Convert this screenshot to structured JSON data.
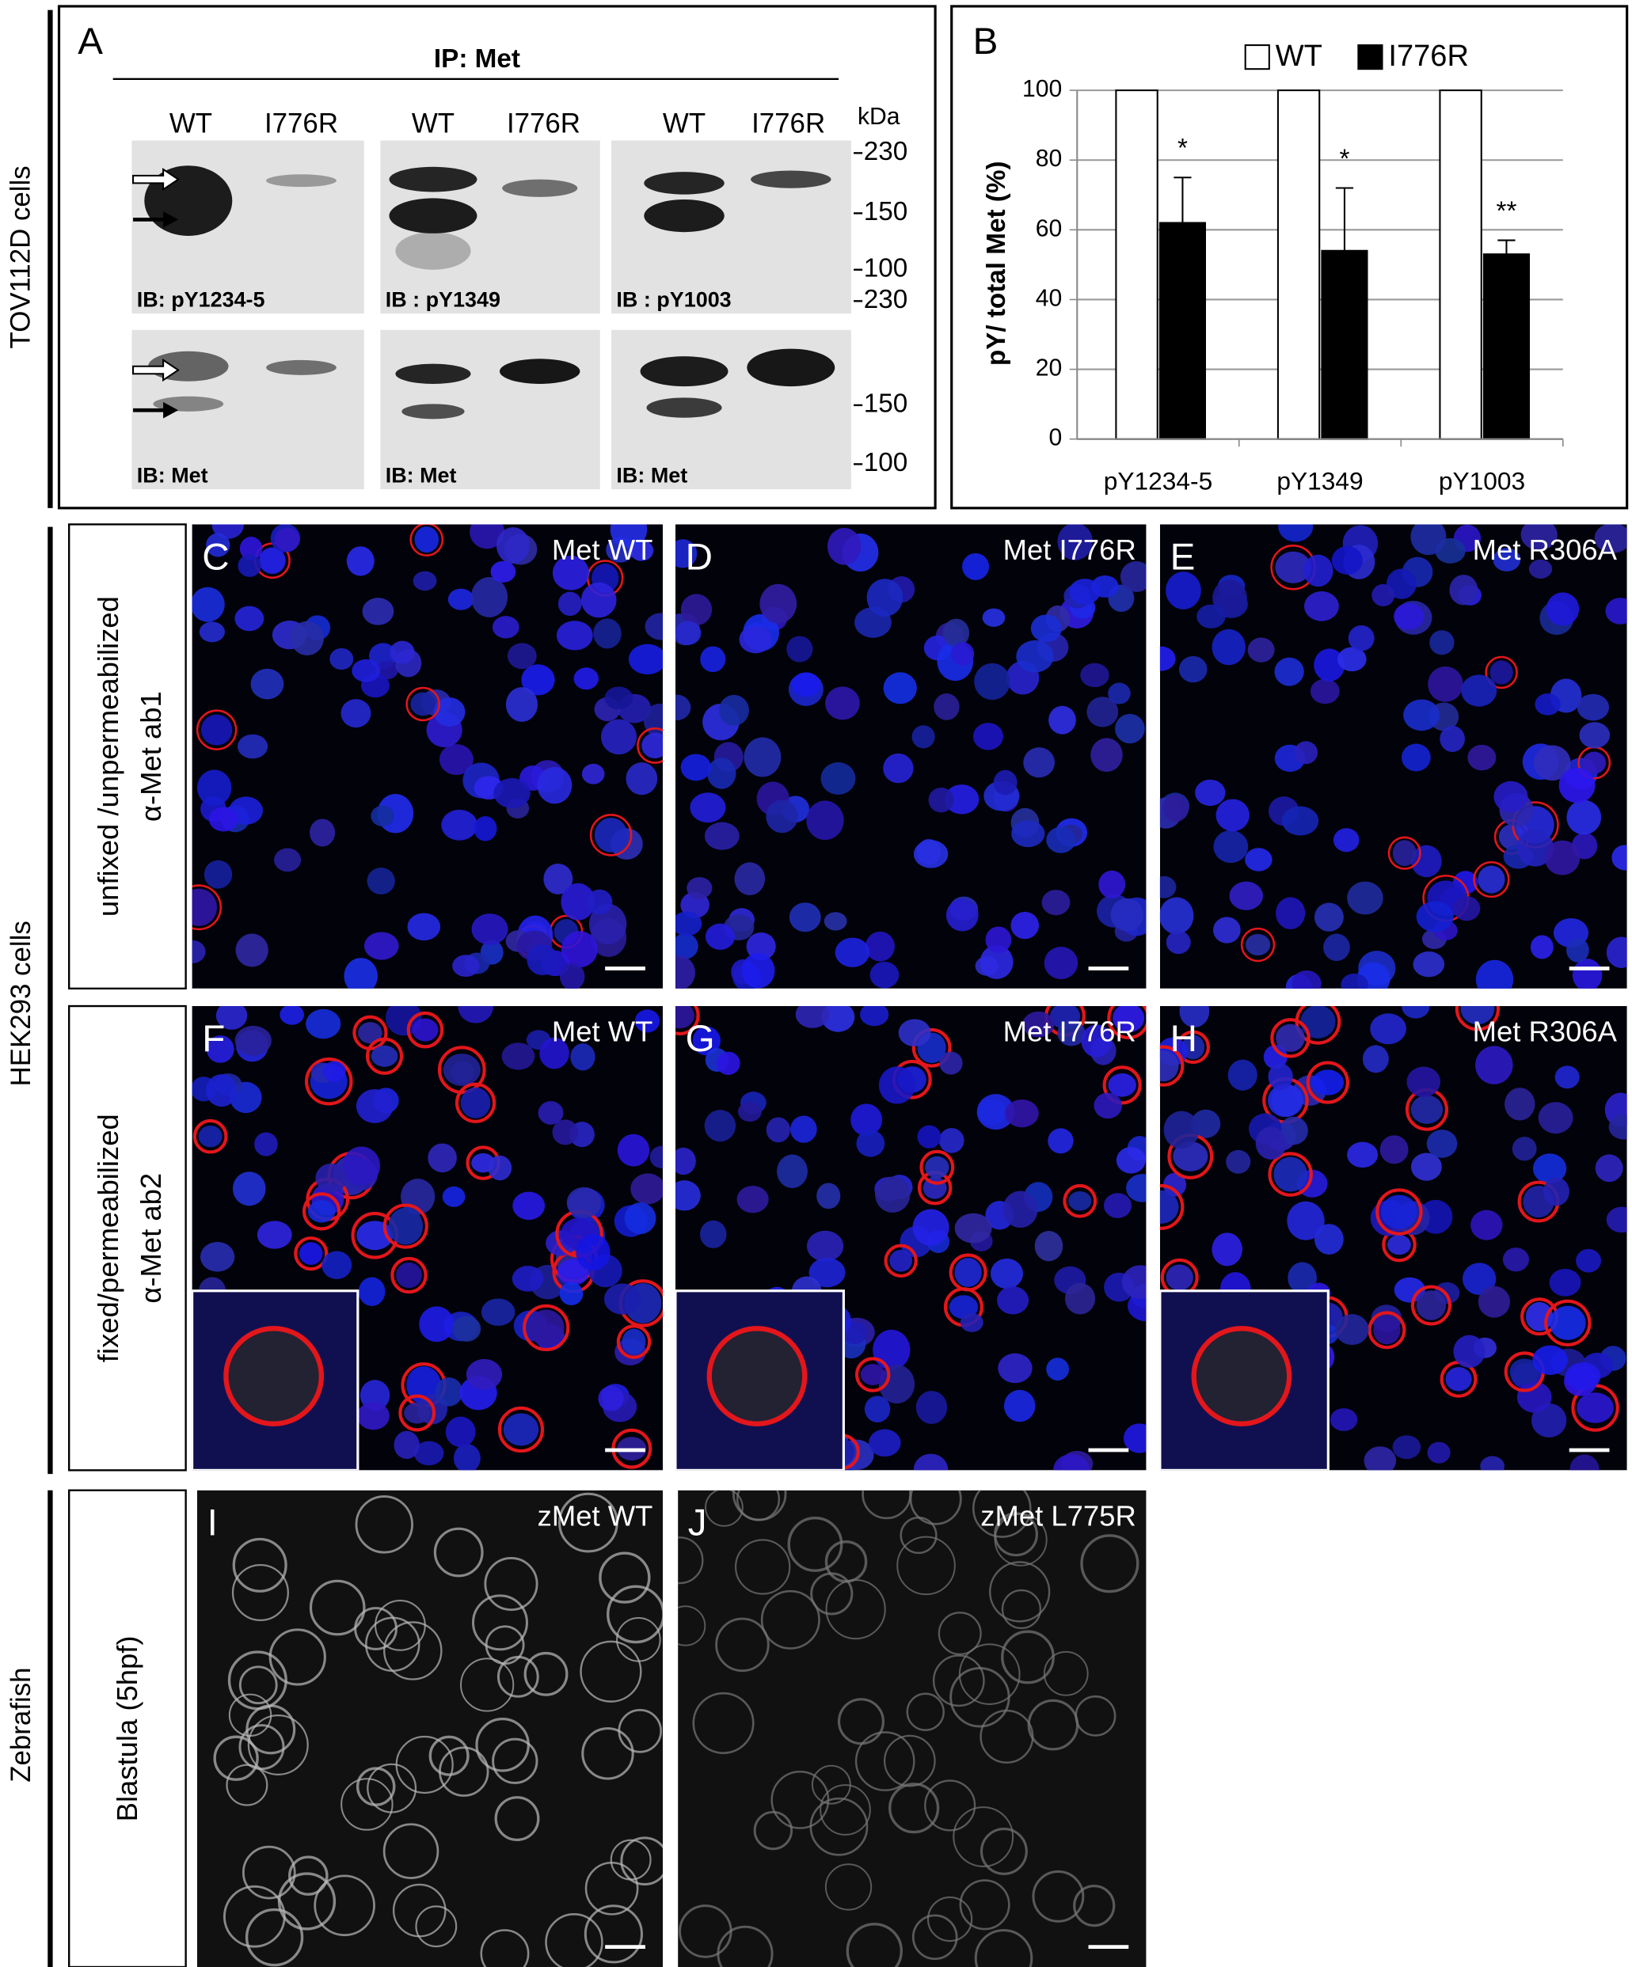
{
  "side_labels": {
    "tov": "TOV112D cells",
    "hek": "HEK293 cells",
    "zebrafish": "Zebrafish"
  },
  "panel_a": {
    "letter": "A",
    "ip": "IP: Met",
    "kda": "kDa",
    "lanes": [
      "WT",
      "I776R",
      "WT",
      "I776R",
      "WT",
      "I776R"
    ],
    "top_markers": [
      230,
      150,
      100
    ],
    "bottom_markers": [
      230,
      150,
      100
    ],
    "top_ib": [
      "IB: pY1234-5",
      "IB : pY1349",
      "IB : pY1003"
    ],
    "bottom_ib": [
      "IB: Met",
      "IB: Met",
      "IB: Met"
    ]
  },
  "chart_data": {
    "type": "bar",
    "panel_letter": "B",
    "ylabel": "pY/ total Met (%)",
    "categories": [
      "pY1234-5",
      "pY1349",
      "pY1003"
    ],
    "series": [
      {
        "name": "WT",
        "color": "#ffffff",
        "values": [
          100,
          100,
          100
        ]
      },
      {
        "name": "I776R",
        "color": "#000000",
        "values": [
          62,
          54,
          53
        ],
        "errors": [
          13,
          18,
          4
        ],
        "significance": [
          "*",
          "*",
          "**"
        ]
      }
    ],
    "ylim": [
      0,
      100
    ],
    "yticks": [
      0,
      20,
      40,
      60,
      80,
      100
    ],
    "grid": true
  },
  "rows": [
    {
      "lines": [
        "unfixed /unpermeabilized",
        "α-Met ab1"
      ]
    },
    {
      "lines": [
        "fixed/permeabilized",
        "α-Met ab2"
      ]
    },
    {
      "lines": [
        "Blastula (5hpf)"
      ]
    }
  ],
  "images": [
    {
      "letter": "C",
      "title": "Met WT"
    },
    {
      "letter": "D",
      "title": "Met I776R"
    },
    {
      "letter": "E",
      "title": "Met R306A"
    },
    {
      "letter": "F",
      "title": "Met WT"
    },
    {
      "letter": "G",
      "title": "Met I776R"
    },
    {
      "letter": "H",
      "title": "Met R306A"
    },
    {
      "letter": "I",
      "title": "zMet WT"
    },
    {
      "letter": "J",
      "title": "zMet L775R"
    }
  ]
}
